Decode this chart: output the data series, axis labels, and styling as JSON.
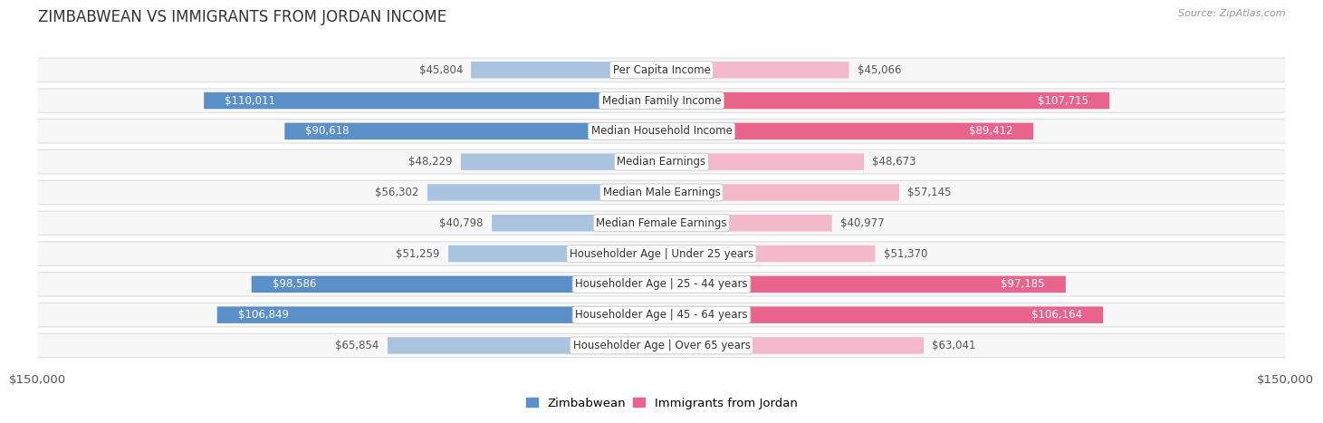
{
  "title": "ZIMBABWEAN VS IMMIGRANTS FROM JORDAN INCOME",
  "source": "Source: ZipAtlas.com",
  "categories": [
    "Per Capita Income",
    "Median Family Income",
    "Median Household Income",
    "Median Earnings",
    "Median Male Earnings",
    "Median Female Earnings",
    "Householder Age | Under 25 years",
    "Householder Age | 25 - 44 years",
    "Householder Age | 45 - 64 years",
    "Householder Age | Over 65 years"
  ],
  "zimbabwean_values": [
    45804,
    110011,
    90618,
    48229,
    56302,
    40798,
    51259,
    98586,
    106849,
    65854
  ],
  "jordan_values": [
    45066,
    107715,
    89412,
    48673,
    57145,
    40977,
    51370,
    97185,
    106164,
    63041
  ],
  "zimbabwean_labels": [
    "$45,804",
    "$110,011",
    "$90,618",
    "$48,229",
    "$56,302",
    "$40,798",
    "$51,259",
    "$98,586",
    "$106,849",
    "$65,854"
  ],
  "jordan_labels": [
    "$45,066",
    "$107,715",
    "$89,412",
    "$48,673",
    "$57,145",
    "$40,977",
    "$51,370",
    "$97,185",
    "$106,164",
    "$63,041"
  ],
  "x_axis_label": "$150,000",
  "x_max": 150000,
  "blue_light": "#aac4e0",
  "blue_dark": "#5b8fc7",
  "pink_light": "#f4b8cb",
  "pink_dark": "#e8648c",
  "row_bg_light": "#f7f7f7",
  "row_border": "#dddddd",
  "dark_threshold": 70000,
  "label_fontsize": 8.5,
  "category_fontsize": 8.5,
  "title_fontsize": 12,
  "legend_fontsize": 9.5,
  "axis_fontsize": 9.5
}
